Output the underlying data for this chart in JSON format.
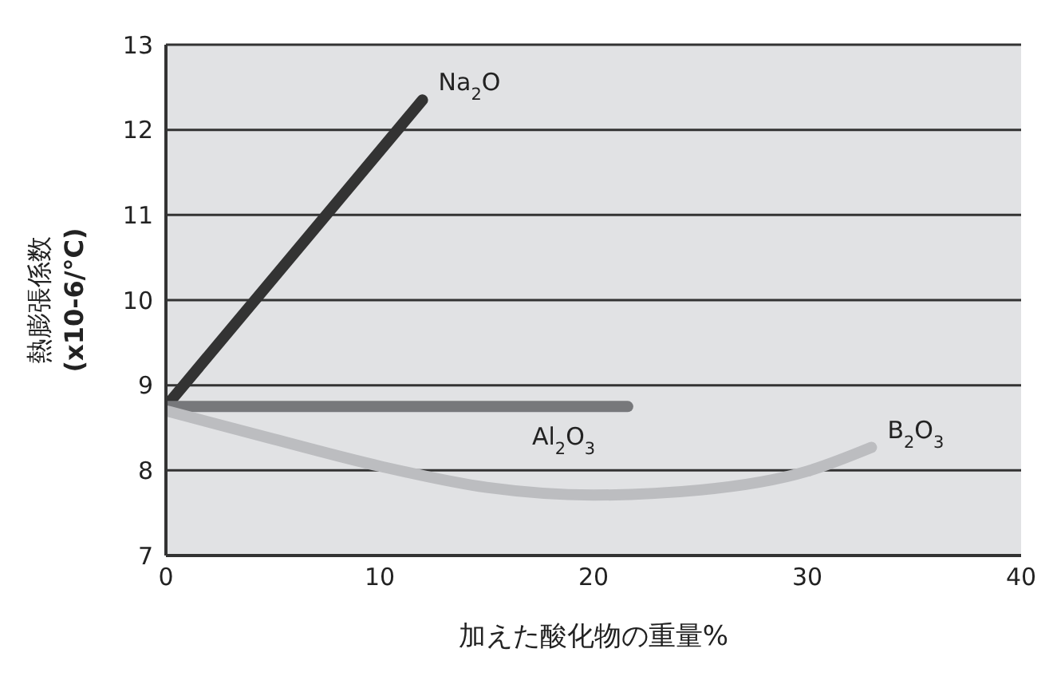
{
  "chart_data": {
    "type": "line",
    "xlabel": "加えた酸化物の重量%",
    "ylabel": "熱膨張係数\n(x10-6/°C)",
    "xlim": [
      0,
      40
    ],
    "xticks": [
      0,
      10,
      20,
      30,
      40
    ],
    "ylim": [
      7,
      13
    ],
    "yticks": [
      7,
      8,
      9,
      10,
      11,
      12,
      13
    ],
    "grid": "y",
    "legend": false,
    "marker": "none",
    "line_style": "solid",
    "series": [
      {
        "name": "Na$_{2}$O",
        "color": "#333333",
        "x": [
          0,
          12
        ],
        "values": [
          8.75,
          12.35
        ]
      },
      {
        "name": "Al$_{2}$O$_{3}$",
        "color": "#77787b",
        "x": [
          0,
          21.6
        ],
        "values": [
          8.75,
          8.75
        ]
      },
      {
        "name": "B$_{2}$O$_{3}$",
        "color": "#bcbdc0",
        "x": [
          0,
          5,
          10,
          15,
          20,
          25,
          30,
          33
        ],
        "values": [
          8.7,
          8.37,
          8.05,
          7.8,
          7.71,
          7.77,
          7.99,
          8.27
        ]
      }
    ]
  }
}
